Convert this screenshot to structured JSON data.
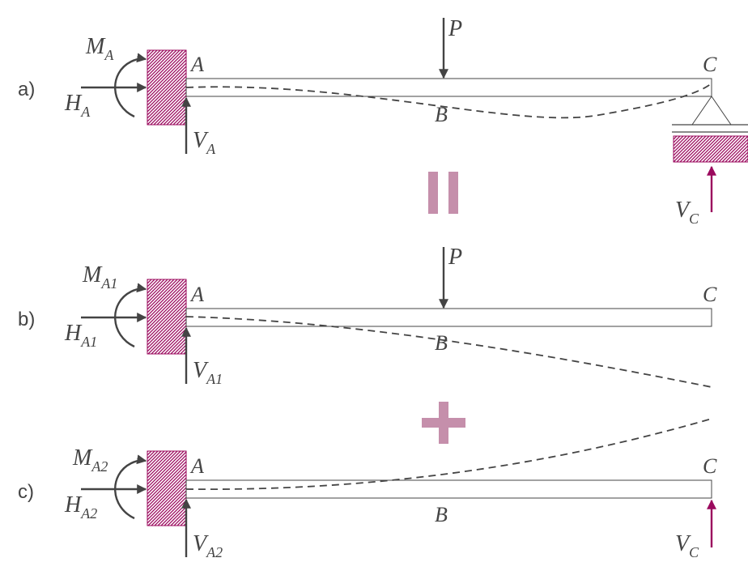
{
  "colors": {
    "ink": "#444444",
    "accent": "#9b0a5e",
    "operator": "#c58fab"
  },
  "cases": [
    {
      "id": "a",
      "tag": "a)",
      "point_A": "A",
      "point_B": "B",
      "point_C": "C",
      "load": "P",
      "moment": {
        "main": "M",
        "sub": "A"
      },
      "horizontal": {
        "main": "H",
        "sub": "A"
      },
      "vertical": {
        "main": "V",
        "sub": "A"
      },
      "support_reaction": {
        "main": "V",
        "sub": "C"
      }
    },
    {
      "id": "b",
      "tag": "b)",
      "point_A": "A",
      "point_B": "B",
      "point_C": "C",
      "load": "P",
      "moment": {
        "main": "M",
        "sub": "A1"
      },
      "horizontal": {
        "main": "H",
        "sub": "A1"
      },
      "vertical": {
        "main": "V",
        "sub": "A1"
      }
    },
    {
      "id": "c",
      "tag": "c)",
      "point_A": "A",
      "point_B": "B",
      "point_C": "C",
      "moment": {
        "main": "M",
        "sub": "A2"
      },
      "horizontal": {
        "main": "H",
        "sub": "A2"
      },
      "vertical": {
        "main": "V",
        "sub": "A2"
      },
      "end_force": {
        "main": "V",
        "sub": "C"
      }
    }
  ],
  "operators": {
    "equals": "equals-sign-icon",
    "plus": "plus-sign-icon"
  }
}
